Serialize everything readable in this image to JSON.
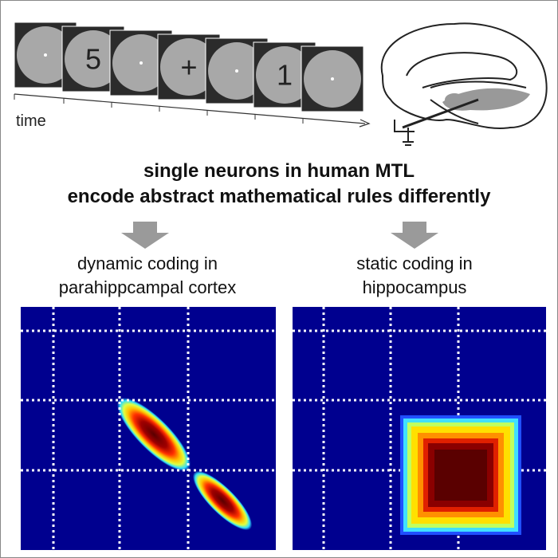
{
  "stimulus_sequence": {
    "symbols": [
      "5",
      "+",
      "1"
    ],
    "axis_label": "time"
  },
  "headline": {
    "line1": "single neurons in human MTL",
    "line2": "encode abstract mathematical rules differently"
  },
  "panels": [
    {
      "caption": [
        "dynamic coding in",
        "parahippcampal cortex"
      ]
    },
    {
      "caption": [
        "static coding in",
        "hippocampus"
      ]
    }
  ]
}
